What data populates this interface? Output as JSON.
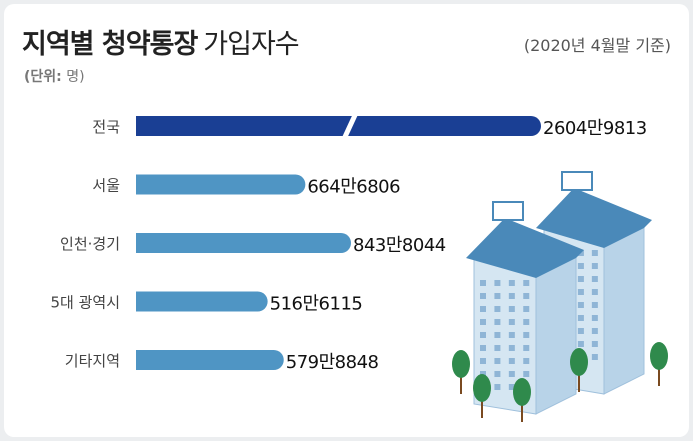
{
  "header": {
    "title_bold": "지역별 청약통장",
    "title_normal": "가입자수",
    "basis": "(2020년 4월말 기준)",
    "unit_label": "(단위:",
    "unit_value": "명)"
  },
  "colors": {
    "primary_bar": "#1a3f94",
    "secondary_bar": "#4f95c4",
    "label_text": "#444444",
    "value_text": "#111111",
    "building_roof": "#4a89b9",
    "building_wall": "#d5e6f2",
    "tree": "#2f8a4c"
  },
  "chart_data": {
    "type": "bar",
    "orientation": "horizontal",
    "categories": [
      "전국",
      "서울",
      "인천·경기",
      "5대 광역시",
      "기타지역"
    ],
    "values": [
      26049813,
      6646806,
      8438044,
      5166115,
      5798848
    ],
    "value_labels": [
      "2604만9813",
      "664만6806",
      "843만8044",
      "516만6115",
      "579만8848"
    ],
    "axis_break": true,
    "title": "지역별 청약통장 가입자수",
    "xlabel": "",
    "ylabel": "",
    "grid": false
  }
}
